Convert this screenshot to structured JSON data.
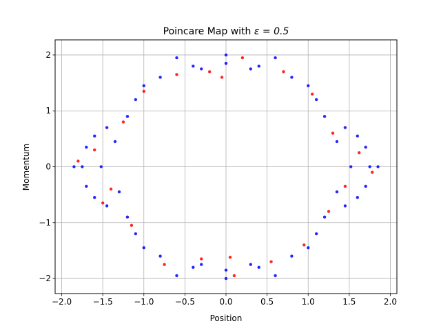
{
  "chart_data": {
    "type": "scatter",
    "title": "Poincare Map with ",
    "title_math": "ε = 0.5",
    "xlabel": "Position",
    "ylabel": "Momentum",
    "xlim": [
      -2.08,
      2.08
    ],
    "ylim": [
      -2.27,
      2.27
    ],
    "xticks": [
      -2.0,
      -1.5,
      -1.0,
      -0.5,
      0.0,
      0.5,
      1.0,
      1.5,
      2.0
    ],
    "xtick_labels": [
      "−2.0",
      "−1.5",
      "−1.0",
      "−0.5",
      "0.0",
      "0.5",
      "1.0",
      "1.5",
      "2.0"
    ],
    "yticks": [
      -2,
      -1,
      0,
      1,
      2
    ],
    "ytick_labels": [
      "−2",
      "−1",
      "0",
      "1",
      "2"
    ],
    "grid": true,
    "epsilon": 0.5,
    "series": [
      {
        "color": "#0000ff",
        "values": [
          [
            -1.52,
            0.0
          ],
          [
            -1.7,
            0.35
          ],
          [
            -1.75,
            0.0
          ],
          [
            -1.7,
            -0.35
          ],
          [
            -1.35,
            0.45
          ],
          [
            -1.3,
            -0.45
          ],
          [
            -1.85,
            0.0
          ],
          [
            -1.6,
            0.55
          ],
          [
            -1.6,
            -0.55
          ],
          [
            -1.2,
            0.9
          ],
          [
            -1.2,
            -0.9
          ],
          [
            -1.1,
            1.2
          ],
          [
            -0.8,
            1.6
          ],
          [
            -0.4,
            1.8
          ],
          [
            0.0,
            1.85
          ],
          [
            0.4,
            1.8
          ],
          [
            0.8,
            1.6
          ],
          [
            1.1,
            1.2
          ],
          [
            1.2,
            0.9
          ],
          [
            1.35,
            0.45
          ],
          [
            1.52,
            0.0
          ],
          [
            1.7,
            0.35
          ],
          [
            1.75,
            0.0
          ],
          [
            1.7,
            -0.35
          ],
          [
            1.85,
            0.0
          ],
          [
            1.6,
            0.55
          ],
          [
            1.6,
            -0.55
          ],
          [
            1.35,
            -0.45
          ],
          [
            1.2,
            -0.9
          ],
          [
            1.1,
            -1.2
          ],
          [
            0.8,
            -1.6
          ],
          [
            0.4,
            -1.8
          ],
          [
            0.0,
            -1.85
          ],
          [
            -0.4,
            -1.8
          ],
          [
            -0.8,
            -1.6
          ],
          [
            -1.1,
            -1.2
          ],
          [
            -0.3,
            1.75
          ],
          [
            0.3,
            1.75
          ],
          [
            -0.3,
            -1.75
          ],
          [
            0.3,
            -1.75
          ],
          [
            0.0,
            2.0
          ],
          [
            0.0,
            -2.0
          ],
          [
            -0.6,
            1.95
          ],
          [
            0.6,
            1.95
          ],
          [
            -0.6,
            -1.95
          ],
          [
            0.6,
            -1.95
          ],
          [
            -1.0,
            1.45
          ],
          [
            1.0,
            1.45
          ],
          [
            -1.0,
            -1.45
          ],
          [
            1.0,
            -1.45
          ],
          [
            -1.45,
            0.7
          ],
          [
            1.45,
            0.7
          ],
          [
            -1.45,
            -0.7
          ],
          [
            1.45,
            -0.7
          ]
        ]
      },
      {
        "color": "#ff0000",
        "values": [
          [
            -1.6,
            0.3
          ],
          [
            -1.4,
            -0.4
          ],
          [
            -1.25,
            0.8
          ],
          [
            -1.0,
            1.35
          ],
          [
            -0.6,
            1.65
          ],
          [
            -0.2,
            1.7
          ],
          [
            0.2,
            1.95
          ],
          [
            0.7,
            1.7
          ],
          [
            1.05,
            1.3
          ],
          [
            1.3,
            0.6
          ],
          [
            1.62,
            0.25
          ],
          [
            1.45,
            -0.35
          ],
          [
            1.25,
            -0.8
          ],
          [
            0.95,
            -1.4
          ],
          [
            0.55,
            -1.7
          ],
          [
            0.1,
            -1.95
          ],
          [
            -0.3,
            -1.65
          ],
          [
            -0.75,
            -1.75
          ],
          [
            -1.15,
            -1.05
          ],
          [
            -1.5,
            -0.65
          ],
          [
            -1.8,
            0.1
          ],
          [
            1.78,
            -0.1
          ],
          [
            -0.05,
            1.6
          ],
          [
            0.05,
            -1.62
          ]
        ]
      }
    ]
  }
}
